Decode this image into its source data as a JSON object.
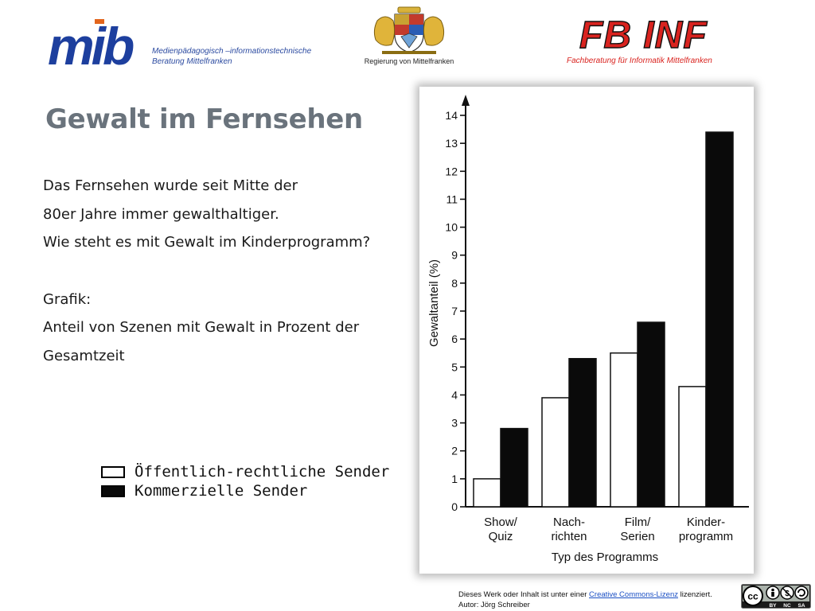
{
  "header": {
    "mib_logo_text": "mib",
    "mib_subtitle_line1": "Medienpädagogisch –informationstechnische",
    "mib_subtitle_line2": "Beratung Mittelfranken",
    "crest_label": "Regierung von Mittelfranken",
    "fbinf_logo_text": "FB INF",
    "fbinf_subtitle": "Fachberatung für Informatik Mittelfranken",
    "colors": {
      "mib_blue": "#1d3f9e",
      "mib_accent": "#e2651c",
      "fbinf_red": "#d9231f"
    }
  },
  "slide": {
    "title": "Gewalt im Fernsehen",
    "paragraph1": [
      "Das Fernsehen wurde seit Mitte der",
      "80er Jahre immer gewalthaltiger.",
      "Wie steht es mit Gewalt im Kinderprogramm?"
    ],
    "paragraph2": [
      "Grafik:",
      "Anteil von Szenen mit Gewalt in Prozent der",
      "Gesamtzeit"
    ],
    "legend": {
      "public": "Öffentlich-rechtliche  Sender",
      "commercial": "Kommerzielle Sender"
    }
  },
  "chart_data": {
    "type": "bar",
    "categories": [
      [
        "Show/",
        "Quiz"
      ],
      [
        "Nach-",
        "richten"
      ],
      [
        "Film/",
        "Serien"
      ],
      [
        "Kinder-",
        "programm"
      ]
    ],
    "series": [
      {
        "name": "Öffentlich-rechtliche  Sender",
        "values": [
          1.0,
          3.9,
          5.5,
          4.3
        ],
        "color": "#ffffff"
      },
      {
        "name": "Kommerzielle Sender",
        "values": [
          2.8,
          5.3,
          6.6,
          13.4
        ],
        "color": "#0a0a0a"
      }
    ],
    "xlabel": "Typ des Programms",
    "ylabel": "Gewaltanteil (%)",
    "ylim": [
      0,
      14
    ],
    "yticks": [
      0,
      1,
      2,
      3,
      4,
      5,
      6,
      7,
      8,
      9,
      10,
      11,
      12,
      13,
      14
    ],
    "grid": false
  },
  "footer": {
    "license_prefix": "Dieses Werk oder Inhalt ist unter einer ",
    "license_link": "Creative Commons-Lizenz",
    "license_suffix": " lizenziert.",
    "author": "Autor: Jörg Schreiber",
    "badge_terms": [
      "BY",
      "NC",
      "SA"
    ]
  }
}
